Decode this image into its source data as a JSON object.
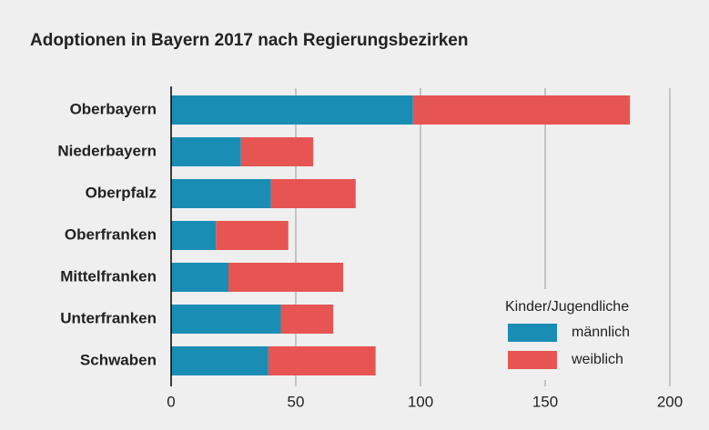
{
  "chart_data": {
    "type": "stacked-horizontal-bar",
    "title": "Adoptionen in Bayern 2017 nach Regierungsbezirken",
    "categories": [
      "Oberbayern",
      "Niederbayern",
      "Oberpfalz",
      "Oberfranken",
      "Mittelfranken",
      "Unterfranken",
      "Schwaben"
    ],
    "series": [
      {
        "name": "männlich",
        "color": "#1a8db5",
        "values": [
          97,
          28,
          40,
          18,
          23,
          44,
          39
        ]
      },
      {
        "name": "weiblich",
        "color": "#e65552",
        "values": [
          87,
          29,
          34,
          29,
          46,
          21,
          43
        ]
      }
    ],
    "legend_title": "Kinder/Jugendliche",
    "legend": "lower-right",
    "xlim": [
      0,
      200
    ],
    "xticks": [
      0,
      50,
      100,
      150,
      200
    ],
    "grid": true
  }
}
